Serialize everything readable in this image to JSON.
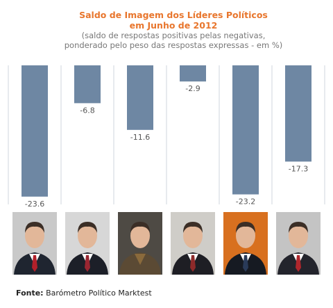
{
  "chart_data": {
    "type": "bar",
    "title": "Saldo de Imagem dos Líderes Políticos",
    "title_line2": "em Junho de 2012",
    "subtitle_line1": "(saldo de respostas positivas pelas negativas,",
    "subtitle_line2": "ponderado pelo peso das respostas expressas - em %)",
    "categories": [
      "",
      "",
      "",
      "",
      "",
      ""
    ],
    "values": [
      -23.6,
      -6.8,
      -11.6,
      -2.9,
      -23.2,
      -17.3
    ],
    "labels": [
      "-23.6",
      "-6.8",
      "-11.6",
      "-2.9",
      "-23.2",
      "-17.3"
    ],
    "ylim": [
      -25,
      0
    ],
    "bar_color": "#6e87a3",
    "grid": false,
    "legend": "none"
  },
  "photos": [
    {
      "name": "photo-leader-1",
      "tie": "#b2202a",
      "shirt": "#ffffff",
      "suit": "#1f2530",
      "bg": "#c9c9c9"
    },
    {
      "name": "photo-leader-2",
      "tie": "#9a2631",
      "shirt": "#ffffff",
      "suit": "#1c1f28",
      "bg": "#d7d7d7"
    },
    {
      "name": "photo-leader-3",
      "tie": "",
      "shirt": "#8a6a3c",
      "suit": "#5b4a34",
      "bg": "#4e4a44"
    },
    {
      "name": "photo-leader-4",
      "tie": "#8e2a2a",
      "shirt": "#ffffff",
      "suit": "#1e1e24",
      "bg": "#cfcdc8"
    },
    {
      "name": "photo-leader-5",
      "tie": "#2a3b59",
      "shirt": "#ffffff",
      "suit": "#161a22",
      "bg": "#d8701f"
    },
    {
      "name": "photo-leader-6",
      "tie": "#b0262c",
      "shirt": "#ffffff",
      "suit": "#23242c",
      "bg": "#c4c4c4"
    }
  ],
  "source": {
    "label": "Fonte:",
    "text": "Barómetro Político Marktest"
  }
}
